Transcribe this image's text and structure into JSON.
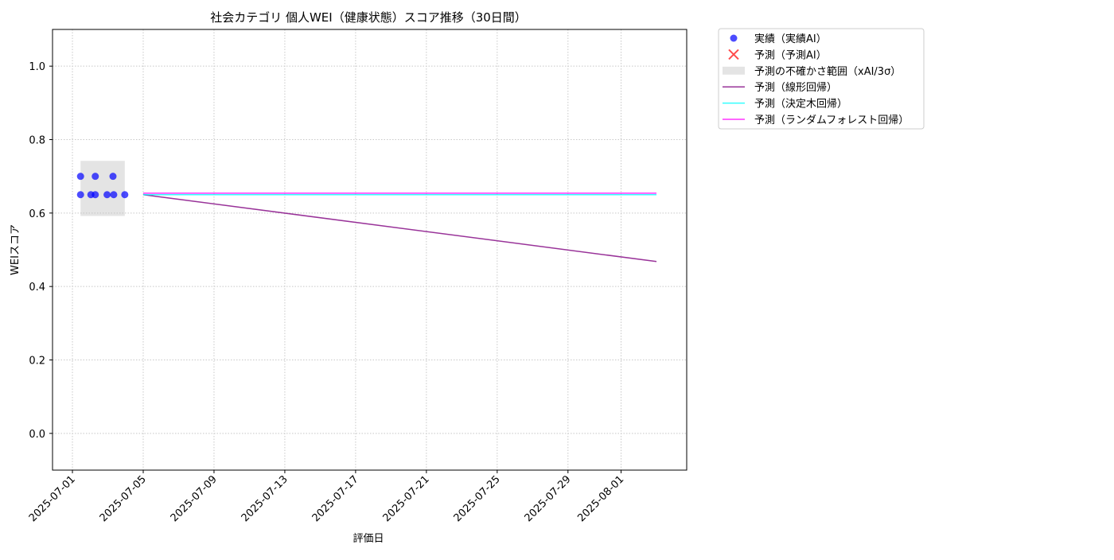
{
  "chart_data": {
    "type": "line",
    "title": "社会カテゴリ 個人WEI（健康状態）スコア推移（30日間）",
    "xlabel": "評価日",
    "ylabel": "WEIスコア",
    "xlim": [
      "2025-06-29T21:00",
      "2025-08-04T17:00"
    ],
    "xticks": [
      "2025-07-01",
      "2025-07-05",
      "2025-07-09",
      "2025-07-13",
      "2025-07-17",
      "2025-07-21",
      "2025-07-25",
      "2025-07-29",
      "2025-08-01"
    ],
    "ylim": [
      -0.1,
      1.1
    ],
    "yticks": [
      {
        "value": 0,
        "label": "0.0"
      },
      0.2,
      0.4,
      0.6,
      0.8,
      {
        "value": 1,
        "label": "1.0"
      }
    ],
    "grid": true,
    "legend": "outside upper right",
    "series": [
      {
        "name": "実績（実績AI）",
        "mark": "scatter",
        "color": "#0000ff",
        "x": [
          "2025-07-01T11:00",
          "2025-07-01T11:00",
          "2025-07-02T01:00",
          "2025-07-02T07:00",
          "2025-07-02T07:00",
          "2025-07-02T23:00",
          "2025-07-03T07:00",
          "2025-07-03T08:00",
          "2025-07-03T23:00"
        ],
        "values": [
          0.7,
          0.65,
          0.65,
          0.65,
          0.7,
          0.65,
          0.7,
          0.65,
          0.65
        ]
      },
      {
        "name": "予測（予測AI）",
        "mark": "cross",
        "color": "#ff0000",
        "x": [],
        "values": []
      },
      {
        "name": "予測の不確かさ範囲（xAI/3σ）",
        "mark": "band",
        "color": "#bbbbbb",
        "x": [
          "2025-07-01T11:00",
          "2025-07-03T23:00"
        ],
        "lower": [
          0.592,
          0.592
        ],
        "upper": [
          0.742,
          0.742
        ]
      },
      {
        "name": "予測（線形回帰）",
        "mark": "line",
        "color": "#800080",
        "x": [
          "2025-07-05",
          "2025-08-03"
        ],
        "values": [
          0.65,
          0.468
        ]
      },
      {
        "name": "予測（決定木回帰）",
        "mark": "line",
        "color": "#00ffff",
        "x": [
          "2025-07-05",
          "2025-08-03"
        ],
        "values": [
          0.65,
          0.65
        ]
      },
      {
        "name": "予測（ランダムフォレスト回帰）",
        "mark": "line",
        "color": "#ff00ff",
        "x": [
          "2025-07-05",
          "2025-08-03"
        ],
        "values": [
          0.654,
          0.654
        ]
      }
    ]
  }
}
